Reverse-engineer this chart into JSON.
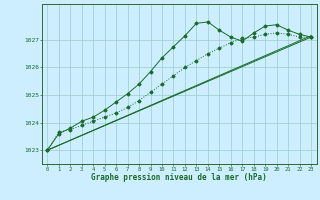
{
  "title": "",
  "xlabel": "Graphe pression niveau de la mer (hPa)",
  "bg_color": "#cceeff",
  "grid_color": "#99cccc",
  "line_color": "#1a6b2a",
  "spine_color": "#336633",
  "xlim": [
    -0.5,
    23.5
  ],
  "ylim": [
    1022.5,
    1028.3
  ],
  "yticks": [
    1023,
    1024,
    1025,
    1026,
    1027
  ],
  "xticks": [
    0,
    1,
    2,
    3,
    4,
    5,
    6,
    7,
    8,
    9,
    10,
    11,
    12,
    13,
    14,
    15,
    16,
    17,
    18,
    19,
    20,
    21,
    22,
    23
  ],
  "series1_straight": {
    "x": [
      0,
      23
    ],
    "y": [
      1023.0,
      1027.1
    ]
  },
  "series2_straight": {
    "x": [
      0,
      23
    ],
    "y": [
      1023.0,
      1027.15
    ]
  },
  "series_curved": {
    "x": [
      0,
      1,
      2,
      3,
      4,
      5,
      6,
      7,
      8,
      9,
      10,
      11,
      12,
      13,
      14,
      15,
      16,
      17,
      18,
      19,
      20,
      21,
      22,
      23
    ],
    "y": [
      1023.0,
      1023.6,
      1023.8,
      1024.05,
      1024.2,
      1024.45,
      1024.75,
      1025.05,
      1025.4,
      1025.85,
      1026.35,
      1026.75,
      1027.15,
      1027.6,
      1027.65,
      1027.35,
      1027.1,
      1026.95,
      1027.25,
      1027.5,
      1027.55,
      1027.35,
      1027.2,
      1027.1
    ]
  },
  "series_dotted": {
    "x": [
      0,
      1,
      2,
      3,
      4,
      5,
      6,
      7,
      8,
      9,
      10,
      11,
      12,
      13,
      14,
      15,
      16,
      17,
      18,
      19,
      20,
      21,
      22,
      23
    ],
    "y": [
      1023.0,
      1023.65,
      1023.75,
      1023.9,
      1024.05,
      1024.2,
      1024.35,
      1024.55,
      1024.8,
      1025.1,
      1025.4,
      1025.7,
      1026.0,
      1026.25,
      1026.5,
      1026.7,
      1026.9,
      1027.05,
      1027.1,
      1027.2,
      1027.25,
      1027.2,
      1027.1,
      1027.1
    ]
  }
}
